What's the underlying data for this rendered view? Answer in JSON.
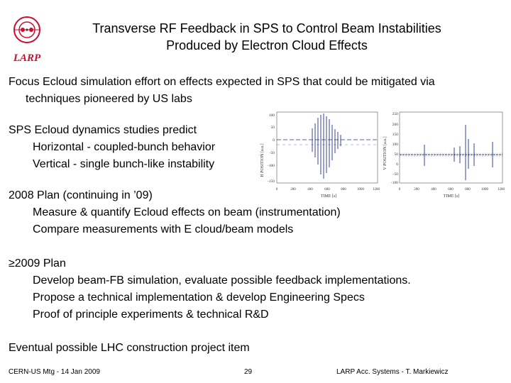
{
  "colors": {
    "logo_red": "#c8102e",
    "signal_blue": "#1f2f8f"
  },
  "logo": {
    "text": "LARP"
  },
  "title": {
    "line1": "Transverse RF Feedback in SPS to Control Beam Instabilities",
    "line2": "Produced by Electron Cloud Effects"
  },
  "intro": {
    "line1": "Focus Ecloud simulation effort on effects expected in SPS that could be mitigated via",
    "line2": "techniques pioneered by US labs"
  },
  "dynamics": {
    "heading": "SPS Ecloud dynamics studies predict",
    "items": [
      "Horizontal - coupled-bunch behavior",
      "Vertical - single bunch-like instability"
    ]
  },
  "plan2008": {
    "heading": "2008 Plan (continuing in ’09)",
    "items": [
      "Measure & quantify Ecloud effects on beam (instrumentation)",
      "Compare measurements with E cloud/beam models"
    ]
  },
  "plan2009": {
    "heading": "≥2009 Plan",
    "items": [
      "Develop beam-FB simulation, evaluate possible feedback implementations.",
      "Propose a technical implementation & develop Engineering Specs",
      "Proof of principle experiments & technical R&D"
    ]
  },
  "eventual": "Eventual possible LHC construction project item",
  "plots": {
    "left": {
      "ylabel": "H POSITION [a.u.]",
      "xlabel": "TIME [s]",
      "yticks": [
        "100",
        "50",
        "0",
        "-50",
        "-100",
        "-150"
      ],
      "xticks": [
        "0",
        "200",
        "400",
        "600",
        "800",
        "1000",
        "1200"
      ]
    },
    "right": {
      "ylabel": "V POSITION [a.u.]",
      "xlabel": "TIME [s]",
      "yticks": [
        "250",
        "200",
        "150",
        "100",
        "50",
        "0",
        "-50",
        "-100"
      ],
      "xticks": [
        "0",
        "200",
        "400",
        "600",
        "800",
        "1000",
        "1200"
      ]
    }
  },
  "footer": {
    "left": "CERN-US Mtg - 14 Jan 2009",
    "center": "29",
    "right": "LARP Acc. Systems - T. Markiewicz"
  }
}
